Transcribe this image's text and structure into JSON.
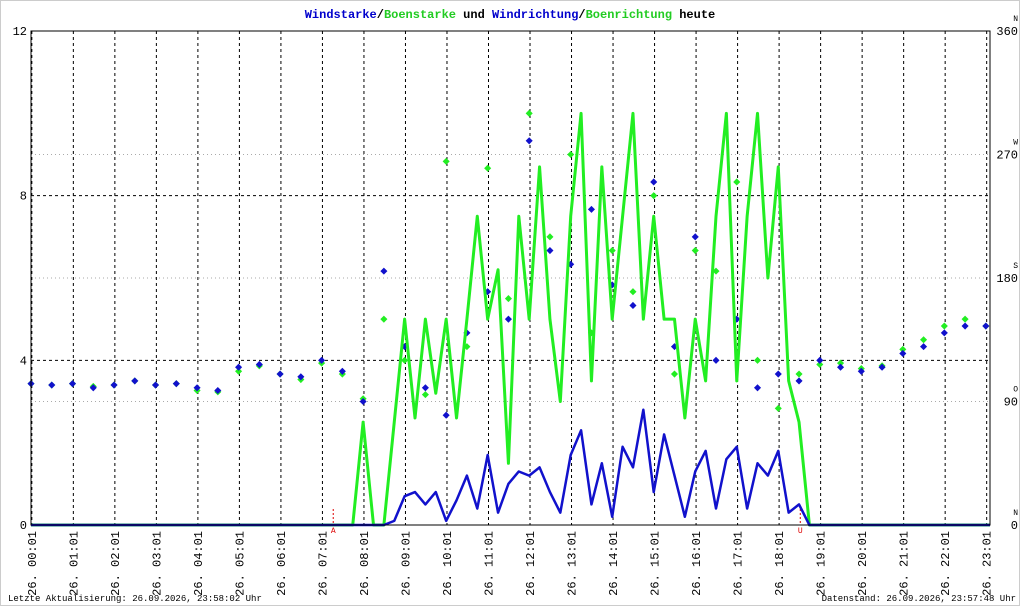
{
  "chart_data": {
    "type": "line",
    "title_parts": [
      {
        "text": "Windstarke",
        "color": "#0000cc"
      },
      {
        "text": "/",
        "color": "#000000"
      },
      {
        "text": "Boenstarke",
        "color": "#22cc22"
      },
      {
        "text": " und ",
        "color": "#000000"
      },
      {
        "text": "Windrichtung",
        "color": "#0000cc"
      },
      {
        "text": "/",
        "color": "#000000"
      },
      {
        "text": "Boenrichtung",
        "color": "#22cc22"
      },
      {
        "text": " heute",
        "color": "#000000"
      }
    ],
    "xlim": [
      0,
      23.1
    ],
    "xticks": [
      {
        "value": 0.02,
        "label": "26. 00:01"
      },
      {
        "value": 1.02,
        "label": "26. 01:01"
      },
      {
        "value": 2.02,
        "label": "26. 02:01"
      },
      {
        "value": 3.02,
        "label": "26. 03:01"
      },
      {
        "value": 4.02,
        "label": "26. 04:01"
      },
      {
        "value": 5.02,
        "label": "26. 05:01"
      },
      {
        "value": 6.02,
        "label": "26. 06:01"
      },
      {
        "value": 7.02,
        "label": "26. 07:01"
      },
      {
        "value": 8.02,
        "label": "26. 08:01"
      },
      {
        "value": 9.02,
        "label": "26. 09:01"
      },
      {
        "value": 10.02,
        "label": "26. 10:01"
      },
      {
        "value": 11.02,
        "label": "26. 11:01"
      },
      {
        "value": 12.02,
        "label": "26. 12:01"
      },
      {
        "value": 13.02,
        "label": "26. 13:01"
      },
      {
        "value": 14.02,
        "label": "26. 14:01"
      },
      {
        "value": 15.02,
        "label": "26. 15:01"
      },
      {
        "value": 16.02,
        "label": "26. 16:01"
      },
      {
        "value": 17.02,
        "label": "26. 17:01"
      },
      {
        "value": 18.02,
        "label": "26. 18:01"
      },
      {
        "value": 19.02,
        "label": "26. 19:01"
      },
      {
        "value": 20.02,
        "label": "26. 20:01"
      },
      {
        "value": 21.02,
        "label": "26. 21:01"
      },
      {
        "value": 22.02,
        "label": "26. 22:01"
      },
      {
        "value": 23.02,
        "label": "26. 23:01"
      }
    ],
    "ylim": [
      0,
      12
    ],
    "yticks": [
      0,
      4,
      8,
      12
    ],
    "y2lim": [
      0,
      360
    ],
    "y2ticks": [
      0,
      90,
      180,
      270,
      360
    ],
    "y2tick_directions": [
      "N",
      "O",
      "S",
      "W",
      "N"
    ],
    "grid": true,
    "x": [
      0,
      7.75,
      8.0,
      8.25,
      8.5,
      8.75,
      9.0,
      9.25,
      9.5,
      9.75,
      10.0,
      10.25,
      10.5,
      10.75,
      11.0,
      11.25,
      11.5,
      11.75,
      12.0,
      12.25,
      12.5,
      12.75,
      13.0,
      13.25,
      13.5,
      13.75,
      14.0,
      14.25,
      14.5,
      14.75,
      15.0,
      15.25,
      15.5,
      15.75,
      16.0,
      16.25,
      16.5,
      16.75,
      17.0,
      17.25,
      17.5,
      17.75,
      18.0,
      18.25,
      18.5,
      18.75,
      19.0,
      23.1
    ],
    "series": [
      {
        "name": "Boenstarke",
        "color": "#22ee22",
        "width": 3,
        "values": [
          0,
          0,
          2.5,
          0,
          0,
          2.5,
          5,
          2.6,
          5,
          3.2,
          5,
          2.6,
          5,
          7.5,
          5,
          6.2,
          1.5,
          7.5,
          5,
          8.7,
          5,
          3,
          7.5,
          10,
          3.5,
          8.7,
          5,
          7.5,
          10,
          5,
          7.5,
          5,
          5,
          2.6,
          5,
          3.5,
          7.5,
          10,
          3.5,
          7.5,
          10,
          6,
          8.7,
          3.5,
          2.5,
          0,
          0,
          0
        ]
      },
      {
        "name": "Windstarke",
        "color": "#1111cc",
        "width": 2.5,
        "values": [
          0,
          0,
          0,
          0,
          0,
          0.1,
          0.7,
          0.8,
          0.5,
          0.8,
          0.1,
          0.6,
          1.2,
          0.4,
          1.7,
          0.3,
          1.0,
          1.3,
          1.2,
          1.4,
          0.8,
          0.3,
          1.7,
          2.3,
          0.5,
          1.5,
          0.2,
          1.9,
          1.4,
          2.8,
          0.8,
          2.2,
          1.2,
          0.2,
          1.3,
          1.8,
          0.4,
          1.6,
          1.9,
          0.4,
          1.5,
          1.2,
          1.8,
          0.3,
          0.5,
          0,
          0,
          0
        ]
      }
    ],
    "direction_x": [
      0,
      0.5,
      1,
      1.5,
      2,
      2.5,
      3,
      3.5,
      4,
      4.5,
      5,
      5.5,
      6,
      6.5,
      7,
      7.5,
      8,
      8.5,
      9,
      9.5,
      10,
      10.5,
      11,
      11.5,
      12,
      12.5,
      13,
      13.5,
      14,
      14.5,
      15,
      15.5,
      16,
      16.5,
      17,
      17.5,
      18,
      18.5,
      19,
      19.5,
      20,
      20.5,
      21,
      21.5,
      22,
      22.5,
      23
    ],
    "direction_series": [
      {
        "name": "Boenrichtung",
        "color": "#22ee22",
        "values": [
          103,
          102,
          103,
          101,
          102,
          105,
          102,
          103,
          98,
          97,
          112,
          116,
          110,
          106,
          118,
          110,
          92,
          150,
          120,
          95,
          265,
          130,
          260,
          165,
          300,
          210,
          270,
          140,
          200,
          170,
          240,
          110,
          200,
          185,
          250,
          120,
          85,
          110,
          117,
          118,
          114,
          116,
          128,
          135,
          145,
          150,
          145
        ]
      },
      {
        "name": "Windrichtung",
        "color": "#1111cc",
        "values": [
          103,
          102,
          103,
          100,
          102,
          105,
          102,
          103,
          100,
          98,
          115,
          117,
          110,
          108,
          120,
          112,
          90,
          185,
          130,
          100,
          80,
          140,
          170,
          150,
          280,
          200,
          190,
          230,
          175,
          160,
          250,
          130,
          210,
          120,
          150,
          100,
          110,
          105,
          120,
          115,
          112,
          115,
          125,
          130,
          140,
          145,
          145
        ]
      }
    ],
    "annotations": [
      {
        "label": "A",
        "x": 7.28
      },
      {
        "label": "U",
        "x": 18.53
      }
    ],
    "footer_left": "Letzte Aktualisierung: 26.09.2026, 23:58:02 Uhr",
    "footer_right": "Datenstand: 26.09.2026, 23:57:48 Uhr"
  }
}
